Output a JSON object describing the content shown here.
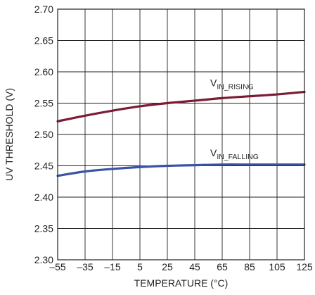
{
  "chart_data": {
    "type": "line",
    "xlabel": "TEMPERATURE (°C)",
    "ylabel": "UV THRESHOLD (V)",
    "xlim": [
      -55,
      125
    ],
    "ylim": [
      2.3,
      2.7
    ],
    "grid": true,
    "x_ticks": [
      "–55",
      "–35",
      "–15",
      "5",
      "25",
      "45",
      "65",
      "85",
      "105",
      "125"
    ],
    "y_ticks": [
      "2.30",
      "2.35",
      "2.40",
      "2.45",
      "2.50",
      "2.55",
      "2.60",
      "2.65",
      "2.70"
    ],
    "series": [
      {
        "label_main": "V",
        "label_sub": "IN_RISING",
        "color": "#7b1c35",
        "x": [
          -55,
          -35,
          -15,
          5,
          25,
          45,
          65,
          85,
          105,
          125
        ],
        "y": [
          2.521,
          2.53,
          2.538,
          2.545,
          2.55,
          2.554,
          2.558,
          2.561,
          2.564,
          2.568
        ]
      },
      {
        "label_main": "V",
        "label_sub": "IN_FALLING",
        "color": "#3a53a4",
        "x": [
          -55,
          -35,
          -15,
          5,
          25,
          45,
          65,
          85,
          105,
          125
        ],
        "y": [
          2.434,
          2.441,
          2.445,
          2.448,
          2.45,
          2.451,
          2.452,
          2.452,
          2.452,
          2.452
        ]
      }
    ]
  }
}
